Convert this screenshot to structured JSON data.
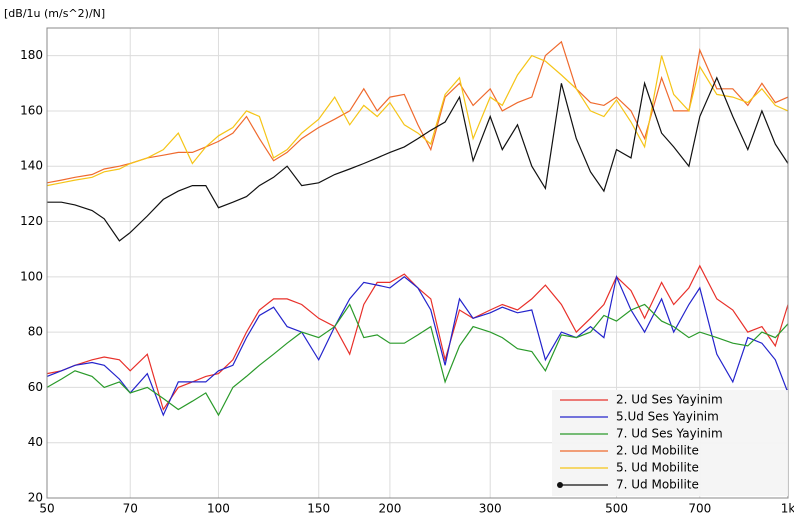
{
  "chart_data": {
    "type": "line",
    "y_label": "[dB/1u (m/s^2)/N]",
    "xscale": "log",
    "grid": true,
    "legend": "lower right",
    "x": [
      50,
      53,
      56,
      60,
      63,
      67,
      70,
      75,
      80,
      85,
      90,
      95,
      100,
      106,
      112,
      118,
      125,
      132,
      140,
      150,
      160,
      170,
      180,
      190,
      200,
      212,
      224,
      236,
      250,
      265,
      280,
      300,
      315,
      335,
      355,
      375,
      400,
      425,
      450,
      475,
      500,
      530,
      560,
      600,
      630,
      670,
      700,
      750,
      800,
      850,
      900,
      950,
      1000
    ],
    "xlim": [
      50,
      1000
    ],
    "xticks": [
      50,
      70,
      100,
      150,
      200,
      300,
      500,
      700,
      {
        "value": 1000,
        "label": "1k"
      }
    ],
    "ylim": [
      20,
      190
    ],
    "yticks": [
      20,
      40,
      60,
      80,
      100,
      120,
      140,
      160,
      180
    ],
    "series": [
      {
        "name": "2. Ud Ses Yayinim",
        "color": "#e8302a",
        "values": [
          65,
          66,
          68,
          70,
          71,
          70,
          66,
          72,
          52,
          60,
          62,
          64,
          65,
          70,
          80,
          88,
          92,
          92,
          90,
          85,
          82,
          72,
          90,
          98,
          98,
          101,
          96,
          92,
          70,
          88,
          85,
          88,
          90,
          88,
          92,
          97,
          90,
          80,
          85,
          90,
          100,
          95,
          85,
          98,
          90,
          96,
          104,
          92,
          88,
          80,
          82,
          75,
          90
        ]
      },
      {
        "name": "5.Ud Ses Yayinim",
        "color": "#2424cc",
        "values": [
          64,
          66,
          68,
          69,
          68,
          63,
          58,
          65,
          50,
          62,
          62,
          62,
          66,
          68,
          78,
          86,
          89,
          82,
          80,
          70,
          82,
          92,
          98,
          97,
          96,
          100,
          96,
          88,
          68,
          92,
          85,
          87,
          89,
          87,
          88,
          70,
          80,
          78,
          82,
          78,
          100,
          88,
          80,
          92,
          80,
          90,
          96,
          72,
          62,
          78,
          76,
          70,
          58
        ]
      },
      {
        "name": "7. Ud Ses Yayinim",
        "color": "#2a9a2a",
        "values": [
          60,
          63,
          66,
          64,
          60,
          62,
          58,
          60,
          56,
          52,
          55,
          58,
          50,
          60,
          64,
          68,
          72,
          76,
          80,
          78,
          82,
          90,
          78,
          79,
          76,
          76,
          79,
          82,
          62,
          75,
          82,
          80,
          78,
          74,
          73,
          66,
          79,
          78,
          80,
          86,
          84,
          88,
          90,
          84,
          82,
          78,
          80,
          78,
          76,
          75,
          80,
          78,
          83
        ]
      },
      {
        "name": "2. Ud Mobilite",
        "color": "#ef6a2e",
        "values": [
          134,
          135,
          136,
          137,
          139,
          140,
          141,
          143,
          144,
          145,
          145,
          147,
          149,
          152,
          158,
          150,
          142,
          145,
          150,
          154,
          157,
          160,
          168,
          160,
          165,
          166,
          155,
          146,
          165,
          170,
          162,
          168,
          160,
          163,
          165,
          180,
          185,
          168,
          163,
          162,
          165,
          160,
          150,
          172,
          160,
          160,
          182,
          168,
          168,
          162,
          170,
          163,
          165
        ]
      },
      {
        "name": "5. Ud Mobilite",
        "color": "#f5c518",
        "values": [
          133,
          134,
          135,
          136,
          138,
          139,
          141,
          143,
          146,
          152,
          141,
          147,
          151,
          154,
          160,
          158,
          143,
          146,
          152,
          157,
          165,
          155,
          162,
          158,
          163,
          155,
          152,
          148,
          166,
          172,
          150,
          165,
          162,
          173,
          180,
          178,
          173,
          168,
          160,
          158,
          164,
          156,
          147,
          180,
          166,
          160,
          176,
          166,
          165,
          163,
          168,
          162,
          160
        ]
      },
      {
        "name": "7. Ud Mobilite",
        "color": "#111111",
        "values": [
          127,
          127,
          126,
          124,
          121,
          113,
          116,
          122,
          128,
          131,
          133,
          133,
          125,
          127,
          129,
          133,
          136,
          140,
          133,
          134,
          137,
          139,
          141,
          143,
          145,
          147,
          150,
          153,
          156,
          165,
          142,
          158,
          146,
          155,
          140,
          132,
          170,
          150,
          138,
          131,
          146,
          143,
          170,
          152,
          147,
          140,
          158,
          172,
          158,
          146,
          160,
          148,
          141
        ]
      }
    ]
  }
}
